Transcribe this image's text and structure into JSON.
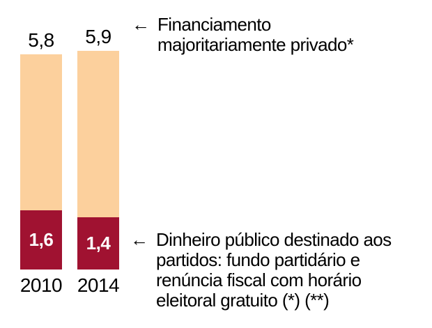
{
  "chart_data": {
    "type": "bar",
    "stacked": true,
    "categories": [
      "2010",
      "2014"
    ],
    "series": [
      {
        "name": "Dinheiro público destinado aos partidos: fundo partidário e renúncia fiscal com horário eleitoral gratuito",
        "values": [
          1.6,
          1.4
        ],
        "value_labels": [
          "1,6",
          "1,4"
        ],
        "color": "#A01231"
      },
      {
        "name": "Financiamento majoritariamente privado",
        "values": [
          4.2,
          4.5
        ],
        "color": "#FCD09D"
      }
    ],
    "totals": [
      5.8,
      5.9
    ],
    "total_labels": [
      "5,8",
      "5,9"
    ],
    "title": "",
    "xlabel": "",
    "ylabel": "",
    "ylim": [
      0,
      5.9
    ],
    "grid": false,
    "legend_position": "arrow-annotations"
  },
  "annotations": [
    {
      "arrow": "←",
      "text": "Financiamento\nmajoritariamente privado*"
    },
    {
      "arrow": "←",
      "text": "Dinheiro público destinado aos\npartidos: fundo partidário e\nrenúncia fiscal com horário\neleitoral gratuito (*) (**)"
    }
  ],
  "colors": {
    "private_segment": "#FCD09D",
    "public_segment": "#A01231",
    "text": "#000000",
    "public_value_text": "#FFFFFF",
    "background": "#FFFFFF"
  }
}
